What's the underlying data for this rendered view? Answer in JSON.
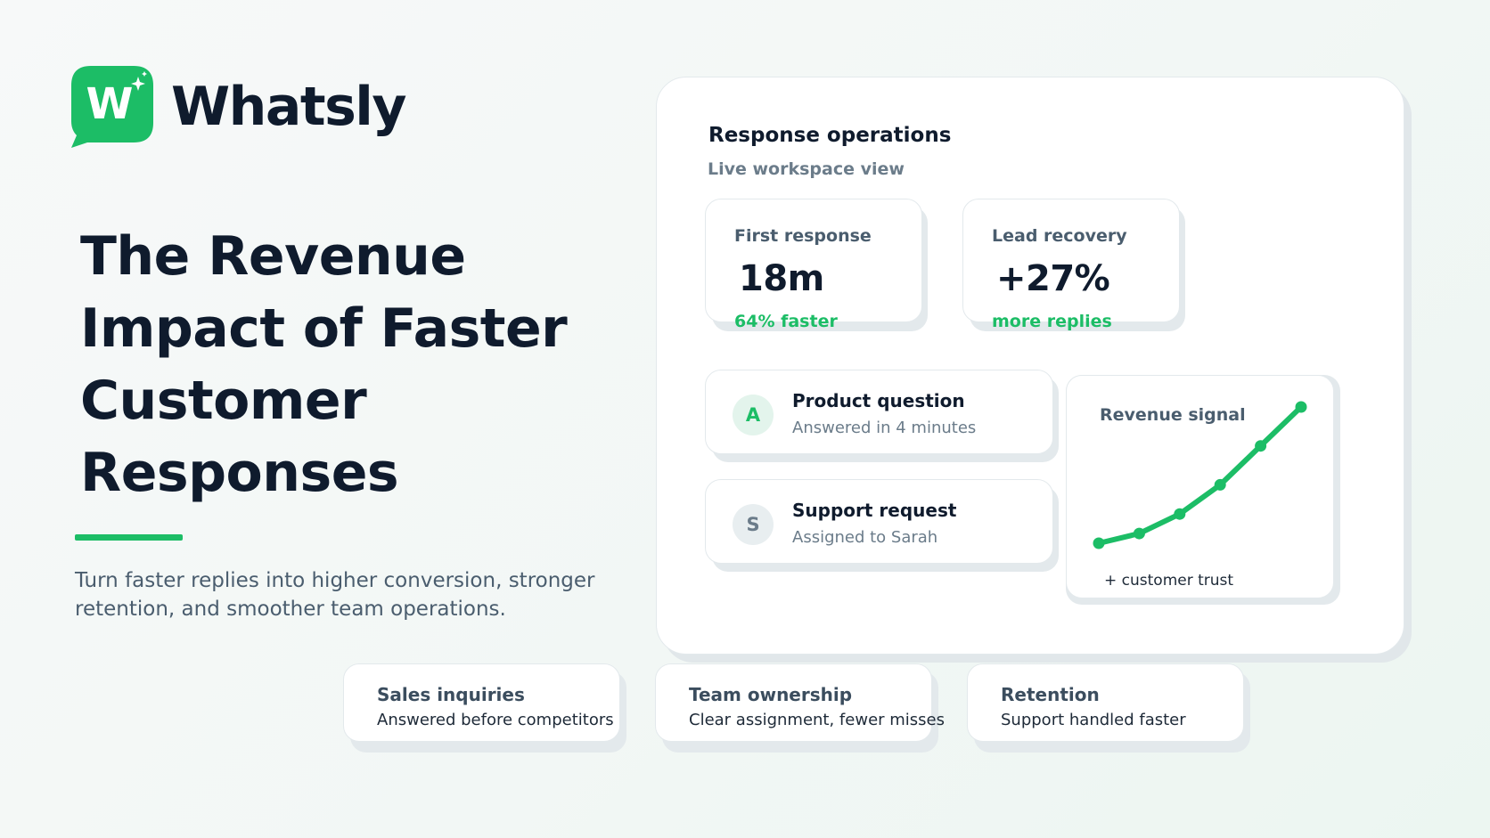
{
  "brand": {
    "name": "Whatsly",
    "mark_letter": "W",
    "color": "#1cbd66",
    "icon": "chat-bubble-logo-icon"
  },
  "headline": "The Revenue Impact of Faster Customer Responses",
  "subtitle": "Turn faster replies into higher conversion, stronger retention, and smoother team operations.",
  "panel": {
    "title": "Response operations",
    "subtitle": "Live workspace view",
    "stats": [
      {
        "label": "First response",
        "value": "18m",
        "note": "64% faster"
      },
      {
        "label": "Lead recovery",
        "value": "+27%",
        "note": "more replies"
      }
    ],
    "messages": [
      {
        "avatar": "A",
        "title": "Product question",
        "detail": "Answered in 4 minutes"
      },
      {
        "avatar": "S",
        "title": "Support request",
        "detail": "Assigned to Sarah"
      }
    ],
    "signal": {
      "label": "Revenue signal",
      "footnote": "+ customer trust",
      "points": [
        1,
        2,
        4,
        7,
        11,
        15
      ]
    }
  },
  "features": [
    {
      "title": "Sales inquiries",
      "detail": "Answered before competitors"
    },
    {
      "title": "Team ownership",
      "detail": "Clear assignment, fewer misses"
    },
    {
      "title": "Retention",
      "detail": "Support handled faster"
    }
  ]
}
